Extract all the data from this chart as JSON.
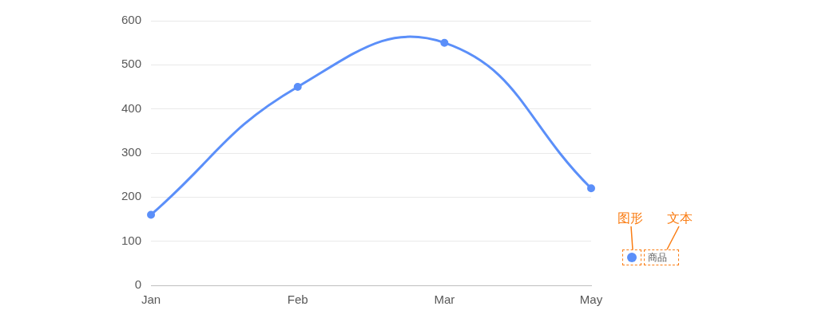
{
  "chart_data": {
    "type": "line",
    "categories": [
      "Jan",
      "Feb",
      "Mar",
      "May"
    ],
    "series": [
      {
        "name": "商品",
        "color": "#5b8ff9",
        "values": [
          160,
          450,
          550,
          220
        ]
      }
    ],
    "ylim": [
      0,
      600
    ],
    "yticks": [
      0,
      100,
      200,
      300,
      400,
      500,
      600
    ],
    "grid": "y",
    "legend": "right",
    "marker": "circle",
    "annotations": [
      "图形",
      "文本"
    ]
  }
}
